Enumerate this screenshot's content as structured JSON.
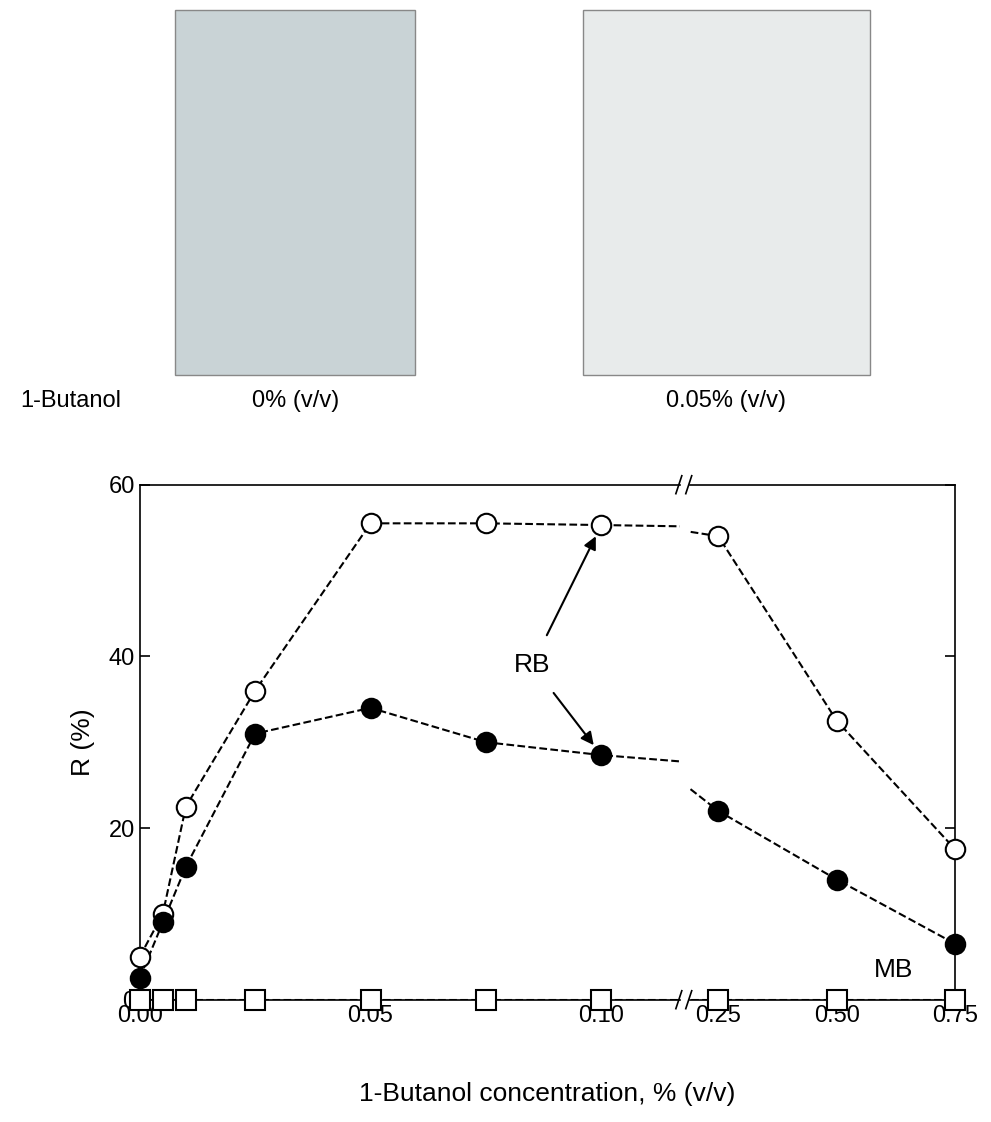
{
  "images": {
    "row_label": "1-Butanol",
    "captions": [
      "0% (v/v)",
      "0.05% (v/v)"
    ]
  },
  "chart_data": [
    {
      "type": "line",
      "x_label": "1-Butanol concentration, % (v/v)",
      "y_label": "R (%)",
      "xlim": [
        0,
        0.117
      ],
      "xticks": [
        {
          "value": 0,
          "label": "0.00"
        },
        0.05,
        {
          "value": 0.1,
          "label": "0.10"
        }
      ],
      "ylim": [
        0,
        60
      ],
      "yticks": [
        0,
        20,
        40,
        60
      ],
      "grid": false,
      "annotations": [
        "RB"
      ],
      "x": [
        0,
        0.005,
        0.01,
        0.025,
        0.05,
        0.075,
        0.1,
        0.25,
        0.5,
        0.75
      ],
      "series": [
        {
          "color": "#000000",
          "marker": "open_circle",
          "line_style": "dashed",
          "values": [
            5,
            10,
            22.5,
            36,
            55.5,
            55.5,
            55.3,
            54,
            32.5,
            17.5
          ]
        },
        {
          "color": "#000000",
          "marker": "filled_circle",
          "line_style": "dashed",
          "values": [
            2.5,
            9,
            15.5,
            31,
            34,
            30,
            28.5,
            22,
            14,
            6.5
          ]
        },
        {
          "color": "#000000",
          "marker": "open_square",
          "line_style": "dashed",
          "values": [
            0,
            0,
            0,
            0,
            0,
            0,
            0,
            0,
            0,
            0
          ]
        }
      ]
    },
    {
      "type": "line",
      "tick_labels": "x",
      "xlim": [
        0.19,
        0.75
      ],
      "xticks": [
        0.25,
        {
          "value": 0.5,
          "label": "0.50"
        },
        0.75
      ],
      "ylim": [
        0,
        60
      ],
      "yticks": [
        0,
        20,
        40,
        60
      ],
      "grid": false,
      "annotations": [
        "MB"
      ],
      "x": [
        0.1,
        0.25,
        0.5,
        0.75
      ],
      "series": [
        {
          "color": "#000000",
          "marker": "open_circle",
          "line_style": "dashed",
          "values": [
            55.3,
            54,
            32.5,
            17.5
          ]
        },
        {
          "color": "#000000",
          "marker": "filled_circle",
          "line_style": "dashed",
          "values": [
            28.5,
            22,
            14,
            6.5
          ]
        },
        {
          "color": "#000000",
          "marker": "open_square",
          "line_style": "dashed",
          "values": [
            0,
            0,
            0,
            0
          ]
        }
      ]
    }
  ]
}
